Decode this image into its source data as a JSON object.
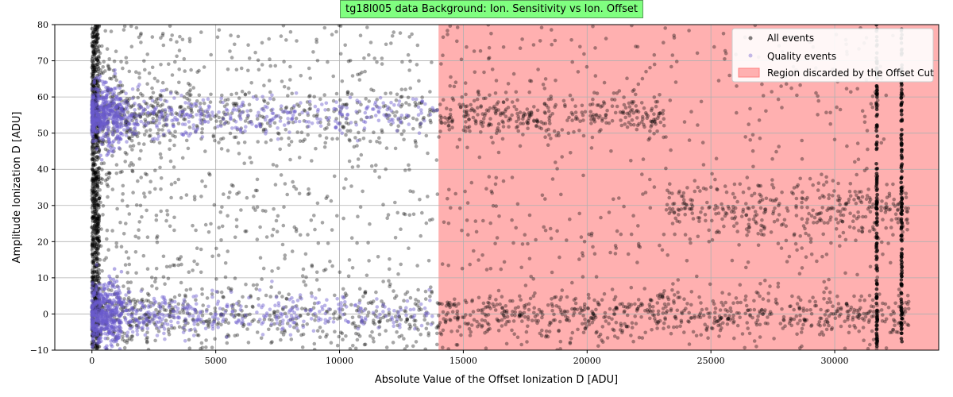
{
  "chart_data": {
    "type": "scatter",
    "title": "tg18l005 data Background: Ion. Sensitivity vs Ion. Offset",
    "xlabel": "Absolute Value of the Offset Ionization D [ADU]",
    "ylabel": "Amplitude Ionization D [ADU]",
    "xlim": [
      -1500,
      34200
    ],
    "ylim": [
      -10,
      80
    ],
    "x_ticks": [
      0,
      5000,
      10000,
      15000,
      20000,
      25000,
      30000
    ],
    "y_ticks": [
      -10,
      0,
      10,
      20,
      30,
      40,
      50,
      60,
      70,
      80
    ],
    "grid": true,
    "legend_position": "top-right",
    "cut_region": {
      "x_start": 14000,
      "x_end": 34200,
      "color": "#ffb0b0"
    },
    "series": [
      {
        "name": "All events",
        "color": "#000000",
        "bands": [
          {
            "x": [
              0,
              14000
            ],
            "y_center": 0,
            "spread": 4
          },
          {
            "x": [
              0,
              14000
            ],
            "y_center": 55,
            "spread": 4
          },
          {
            "x": [
              14000,
              33000
            ],
            "y_center": 0,
            "spread": 3
          },
          {
            "x": [
              14000,
              23200
            ],
            "y_center": 55,
            "spread": 3
          },
          {
            "x": [
              23200,
              33000
            ],
            "y_center": 29,
            "spread": 4
          }
        ],
        "vertical_lines": [
          31700,
          32700
        ]
      },
      {
        "name": "Quality events",
        "color": "#6a5acd",
        "bands": [
          {
            "x": [
              0,
              14000
            ],
            "y_center": 0,
            "spread": 3
          },
          {
            "x": [
              0,
              14000
            ],
            "y_center": 55,
            "spread": 3
          }
        ]
      }
    ],
    "legend": {
      "cut_label": "Region discarded by the Offset Cut"
    }
  }
}
